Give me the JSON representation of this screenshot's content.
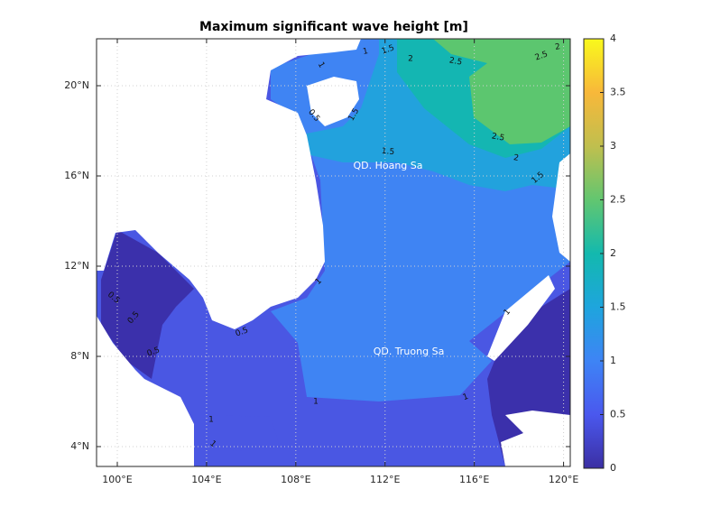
{
  "chart_data": {
    "type": "contour-map",
    "title": "Maximum significant wave height [m]",
    "xlim": [
      99.07,
      120.3
    ],
    "ylim": [
      3.12,
      22.08
    ],
    "xticks": [
      {
        "value": 100,
        "label": "100°E"
      },
      {
        "value": 104,
        "label": "104°E"
      },
      {
        "value": 108,
        "label": "108°E"
      },
      {
        "value": 112,
        "label": "112°E"
      },
      {
        "value": 116,
        "label": "116°E"
      },
      {
        "value": 120,
        "label": "120°E"
      }
    ],
    "yticks": [
      {
        "value": 4,
        "label": "4°N"
      },
      {
        "value": 8,
        "label": "8°N"
      },
      {
        "value": 12,
        "label": "12°N"
      },
      {
        "value": 16,
        "label": "16°N"
      },
      {
        "value": 20,
        "label": "20°N"
      }
    ],
    "grid": true,
    "colorbar": {
      "lim": [
        0,
        4
      ],
      "ticks": [
        0,
        0.5,
        1,
        1.5,
        2,
        2.5,
        3,
        3.5,
        4
      ]
    },
    "contour_labels": [
      1.5,
      1,
      2,
      2.5,
      2.5,
      2,
      1,
      1.5,
      0.5,
      1.5,
      2.5,
      2,
      1.5,
      1,
      0.5,
      0.5,
      0.5,
      0.5,
      1,
      1,
      1,
      1,
      1
    ],
    "annotations": [
      "QD. Hoang Sa",
      "QD. Truong Sa"
    ]
  }
}
